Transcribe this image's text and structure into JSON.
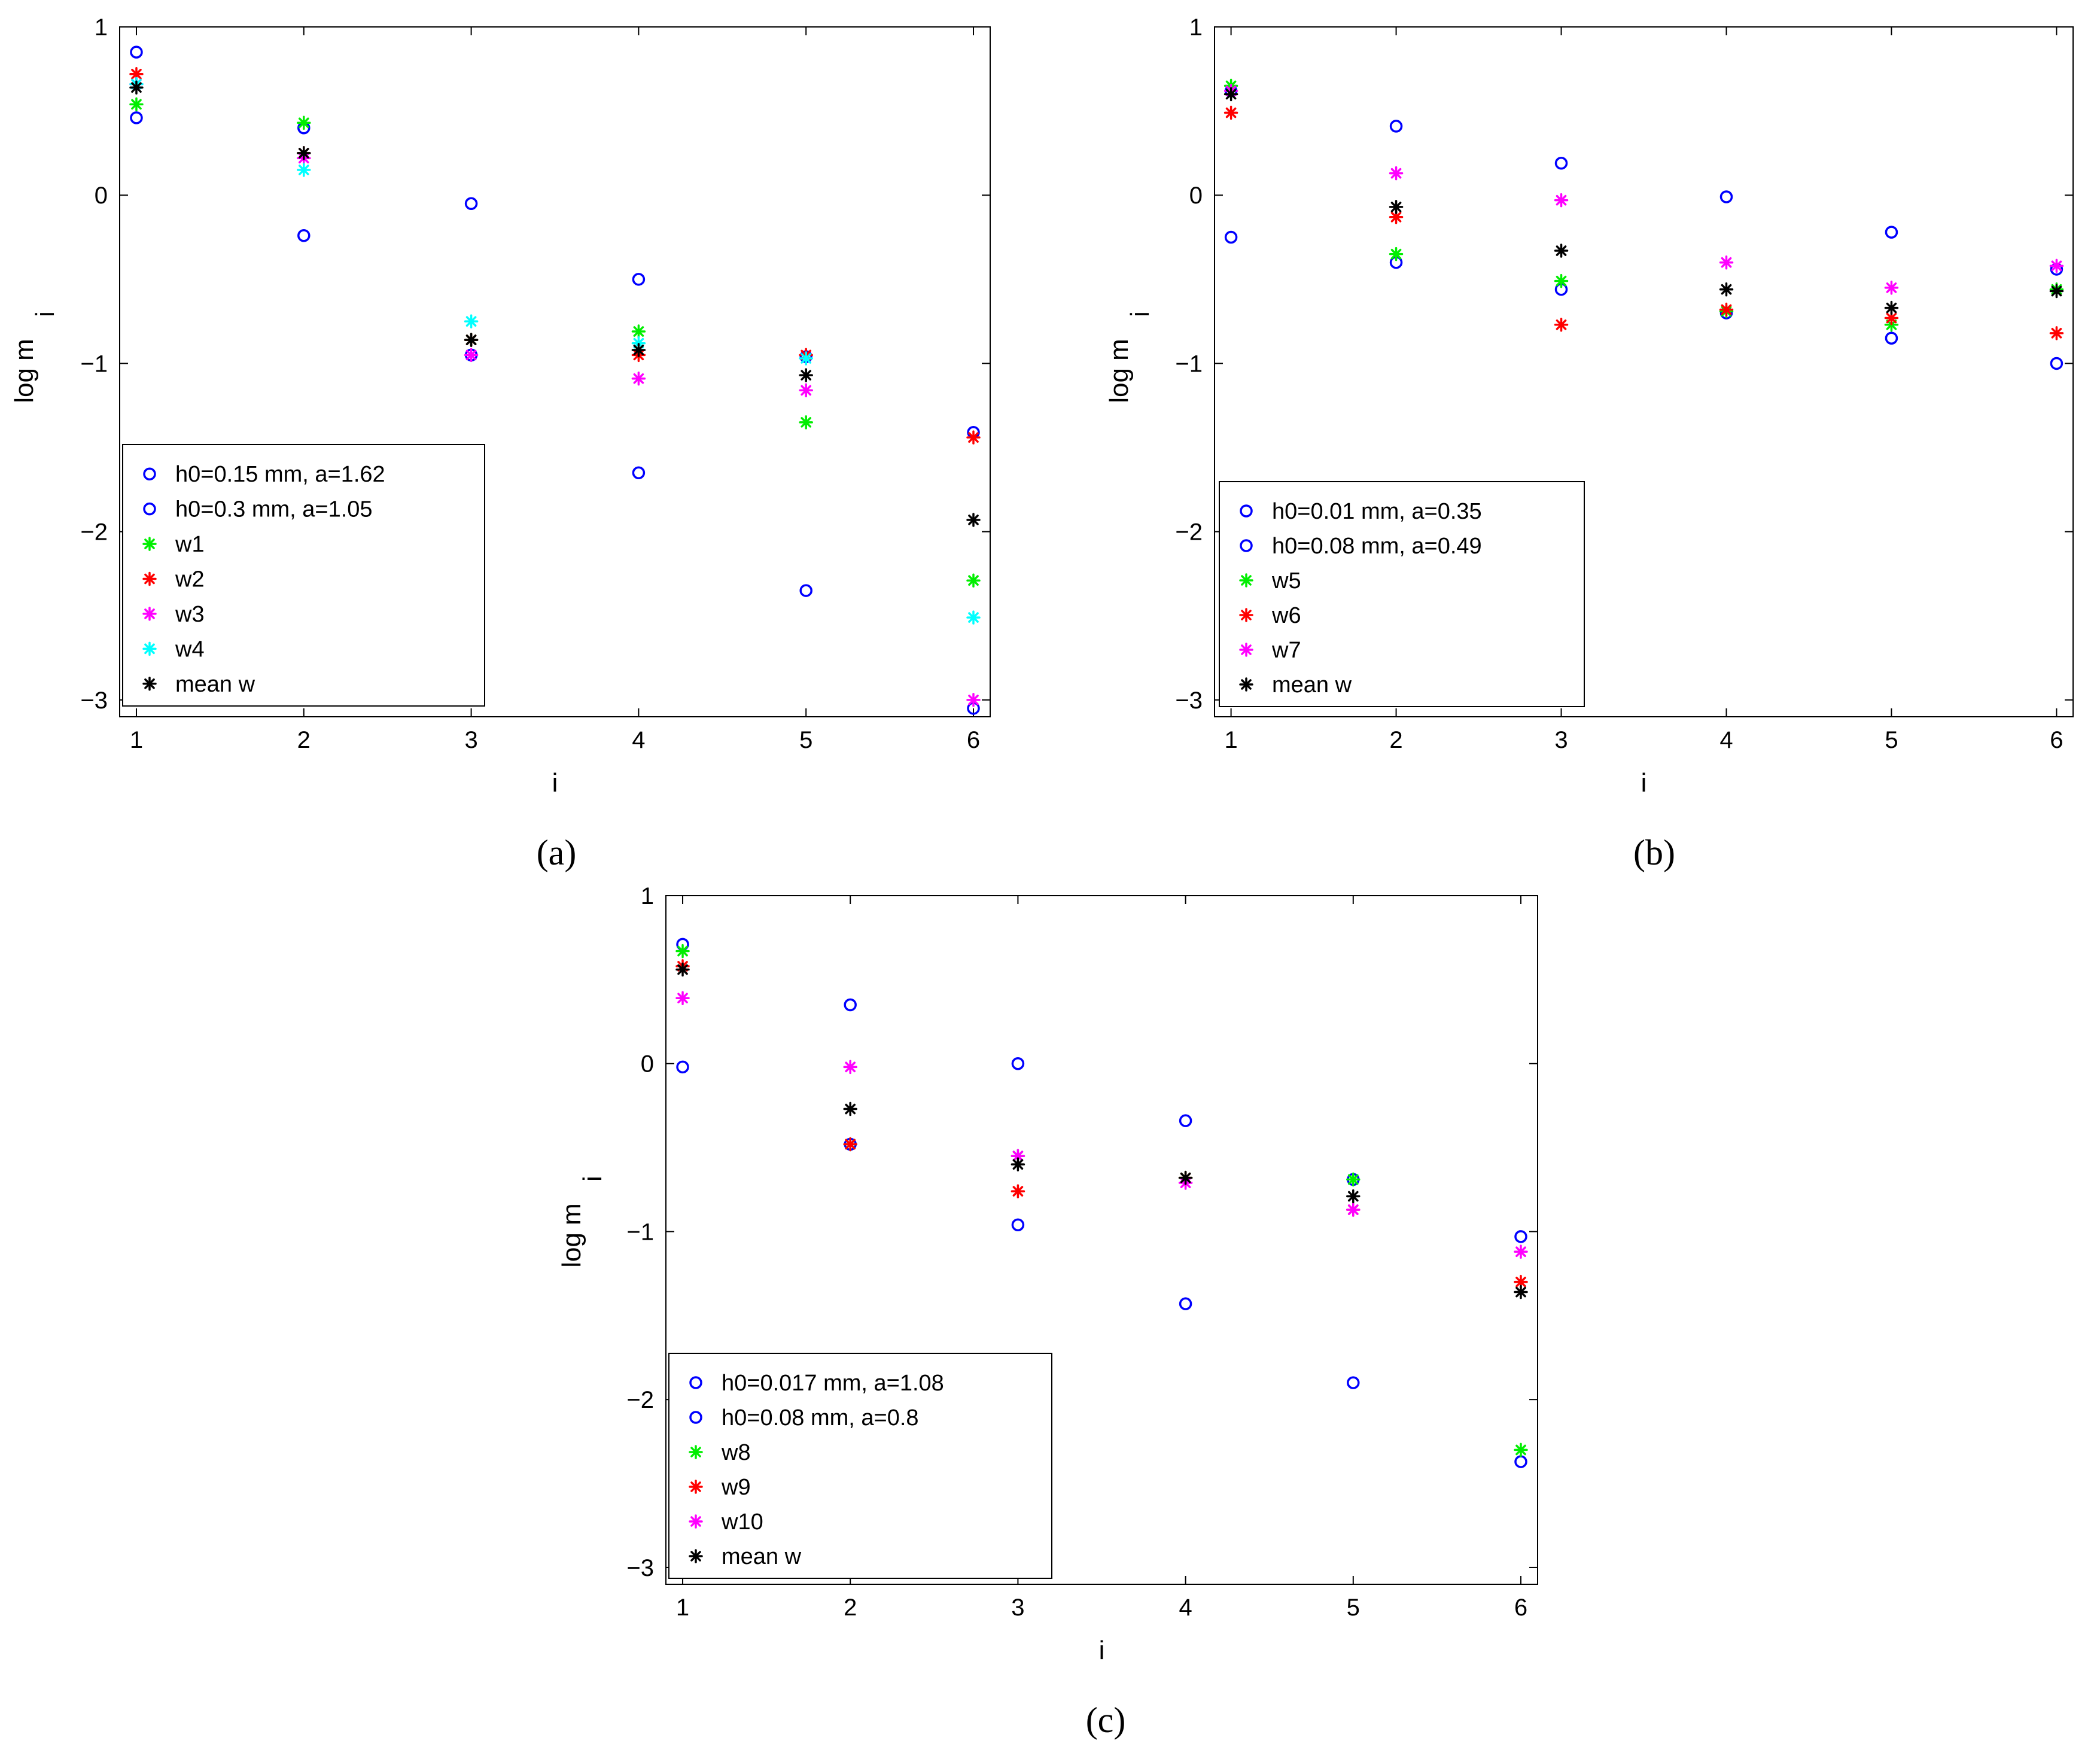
{
  "figure": {
    "colors": {
      "circle": "#0000ff",
      "green": "#00ee00",
      "red": "#ff0000",
      "magenta": "#ff00ff",
      "cyan": "#00ffff",
      "black": "#000000"
    }
  },
  "chart_data": [
    {
      "type": "scatter",
      "caption": "(a)",
      "xlabel": "i",
      "ylabel": "log m",
      "ylabel_sub": "i",
      "xlim": [
        0.9,
        6.1
      ],
      "ylim": [
        -3.1,
        1.0
      ],
      "xticks": [
        1,
        2,
        3,
        4,
        5,
        6
      ],
      "yticks": [
        1,
        0,
        -1,
        -2,
        -3
      ],
      "legend_position": "bottom-left",
      "series": [
        {
          "name": "h0=0.15 mm, a=1.62",
          "marker": "circle",
          "color": "#0000ff",
          "x": [
            1,
            2,
            3,
            4,
            5,
            6
          ],
          "y": [
            0.85,
            -0.24,
            -0.95,
            -1.65,
            -2.35,
            -3.05
          ]
        },
        {
          "name": "h0=0.3 mm, a=1.05",
          "marker": "circle",
          "color": "#0000ff",
          "x": [
            1,
            2,
            3,
            4,
            5,
            6
          ],
          "y": [
            0.46,
            0.4,
            -0.05,
            -0.5,
            -0.96,
            -1.41
          ]
        },
        {
          "name": "w1",
          "marker": "asterisk",
          "color": "#00ee00",
          "x": [
            1,
            2,
            3,
            4,
            5,
            6
          ],
          "y": [
            0.54,
            0.43,
            -0.86,
            -0.81,
            -1.35,
            -2.29
          ]
        },
        {
          "name": "w2",
          "marker": "asterisk",
          "color": "#ff0000",
          "x": [
            1,
            2,
            3,
            4,
            5,
            6
          ],
          "y": [
            0.72,
            0.25,
            -0.86,
            -0.95,
            -0.95,
            -1.44
          ]
        },
        {
          "name": "w3",
          "marker": "asterisk",
          "color": "#ff00ff",
          "x": [
            1,
            2,
            3,
            4,
            5,
            6
          ],
          "y": [
            0.66,
            0.22,
            -0.95,
            -1.09,
            -1.16,
            -3.0
          ]
        },
        {
          "name": "w4",
          "marker": "asterisk",
          "color": "#00ffff",
          "x": [
            1,
            2,
            3,
            4,
            5,
            6
          ],
          "y": [
            0.66,
            0.15,
            -0.75,
            -0.88,
            -0.97,
            -2.51
          ]
        },
        {
          "name": "mean w",
          "marker": "asterisk",
          "color": "#000000",
          "x": [
            1,
            2,
            3,
            4,
            5,
            6
          ],
          "y": [
            0.64,
            0.25,
            -0.86,
            -0.92,
            -1.07,
            -1.93
          ]
        }
      ]
    },
    {
      "type": "scatter",
      "caption": "(b)",
      "xlabel": "i",
      "ylabel": "log m",
      "ylabel_sub": "i",
      "xlim": [
        0.9,
        6.1
      ],
      "ylim": [
        -3.1,
        1.0
      ],
      "xticks": [
        1,
        2,
        3,
        4,
        5,
        6
      ],
      "yticks": [
        1,
        0,
        -1,
        -2,
        -3
      ],
      "legend_position": "bottom-left",
      "series": [
        {
          "name": "h0=0.01 mm, a=0.35",
          "marker": "circle",
          "color": "#0000ff",
          "x": [
            1,
            2,
            3,
            4,
            5,
            6
          ],
          "y": [
            -0.25,
            -0.4,
            -0.56,
            -0.7,
            -0.85,
            -1.0
          ]
        },
        {
          "name": "h0=0.08 mm, a=0.49",
          "marker": "circle",
          "color": "#0000ff",
          "x": [
            1,
            2,
            3,
            4,
            5,
            6
          ],
          "y": [
            0.62,
            0.41,
            0.19,
            -0.01,
            -0.22,
            -0.44
          ]
        },
        {
          "name": "w5",
          "marker": "asterisk",
          "color": "#00ee00",
          "x": [
            1,
            2,
            3,
            4,
            5,
            6
          ],
          "y": [
            0.65,
            -0.35,
            -0.51,
            -0.69,
            -0.77,
            -0.56
          ]
        },
        {
          "name": "w6",
          "marker": "asterisk",
          "color": "#ff0000",
          "x": [
            1,
            2,
            3,
            4,
            5,
            6
          ],
          "y": [
            0.49,
            -0.13,
            -0.77,
            -0.68,
            -0.73,
            -0.82
          ]
        },
        {
          "name": "w7",
          "marker": "asterisk",
          "color": "#ff00ff",
          "x": [
            1,
            2,
            3,
            4,
            5,
            6
          ],
          "y": [
            0.62,
            0.13,
            -0.03,
            -0.4,
            -0.55,
            -0.42
          ]
        },
        {
          "name": "mean w",
          "marker": "asterisk",
          "color": "#000000",
          "x": [
            1,
            2,
            3,
            4,
            5,
            6
          ],
          "y": [
            0.6,
            -0.07,
            -0.33,
            -0.56,
            -0.67,
            -0.57
          ]
        }
      ]
    },
    {
      "type": "scatter",
      "caption": "(c)",
      "xlabel": "i",
      "ylabel": "log m",
      "ylabel_sub": "i",
      "xlim": [
        0.9,
        6.1
      ],
      "ylim": [
        -3.1,
        1.0
      ],
      "xticks": [
        1,
        2,
        3,
        4,
        5,
        6
      ],
      "yticks": [
        1,
        0,
        -1,
        -2,
        -3
      ],
      "legend_position": "bottom-left",
      "series": [
        {
          "name": "h0=0.017 mm, a=1.08",
          "marker": "circle",
          "color": "#0000ff",
          "x": [
            1,
            2,
            3,
            4,
            5,
            6
          ],
          "y": [
            0.71,
            -0.48,
            -0.96,
            -1.43,
            -1.9,
            -2.37
          ]
        },
        {
          "name": "h0=0.08 mm, a=0.8",
          "marker": "circle",
          "color": "#0000ff",
          "x": [
            1,
            2,
            3,
            4,
            5,
            6
          ],
          "y": [
            -0.02,
            0.35,
            0.0,
            -0.34,
            -0.69,
            -1.03
          ]
        },
        {
          "name": "w8",
          "marker": "asterisk",
          "color": "#00ee00",
          "x": [
            1,
            2,
            3,
            4,
            5,
            6
          ],
          "y": [
            0.67,
            -0.48,
            -0.55,
            -0.68,
            -0.69,
            -2.3
          ]
        },
        {
          "name": "w9",
          "marker": "asterisk",
          "color": "#ff0000",
          "x": [
            1,
            2,
            3,
            4,
            5,
            6
          ],
          "y": [
            0.58,
            -0.48,
            -0.76,
            -0.68,
            -0.87,
            -1.3
          ]
        },
        {
          "name": "w10",
          "marker": "asterisk",
          "color": "#ff00ff",
          "x": [
            1,
            2,
            3,
            4,
            5,
            6
          ],
          "y": [
            0.39,
            -0.02,
            -0.55,
            -0.71,
            -0.87,
            -1.12
          ]
        },
        {
          "name": "mean w",
          "marker": "asterisk",
          "color": "#000000",
          "x": [
            1,
            2,
            3,
            4,
            5,
            6
          ],
          "y": [
            0.56,
            -0.27,
            -0.6,
            -0.68,
            -0.79,
            -1.36
          ]
        }
      ]
    }
  ]
}
